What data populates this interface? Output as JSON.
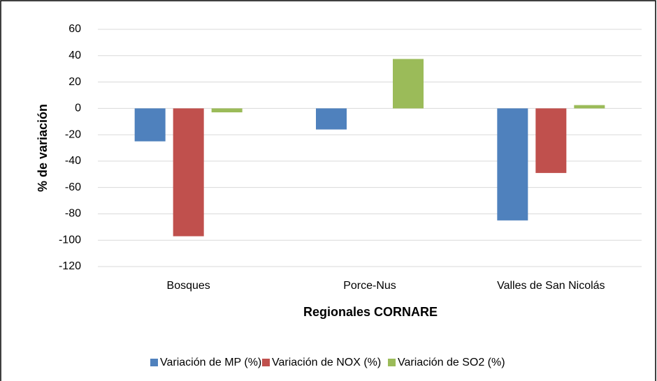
{
  "chart_data": {
    "type": "bar",
    "ylabel": "% de variación",
    "xlabel": "Regionales CORNARE",
    "categories": [
      "Bosques",
      "Porce-Nus",
      "Valles de San Nicolás"
    ],
    "series": [
      {
        "name": "Variación de MP (%)",
        "color": "#4f81bd",
        "values": [
          -25,
          -16,
          -85
        ]
      },
      {
        "name": "Variación de NOX (%)",
        "color": "#c0504d",
        "values": [
          -97,
          0,
          -49
        ]
      },
      {
        "name": "Variación de SO2 (%)",
        "color": "#9bbb59",
        "values": [
          -3,
          37.5,
          2.5
        ]
      }
    ],
    "ylim": [
      -120,
      60
    ],
    "yticks": [
      -120,
      -100,
      -80,
      -60,
      -40,
      -20,
      0,
      20,
      40,
      60
    ],
    "grid": true
  }
}
